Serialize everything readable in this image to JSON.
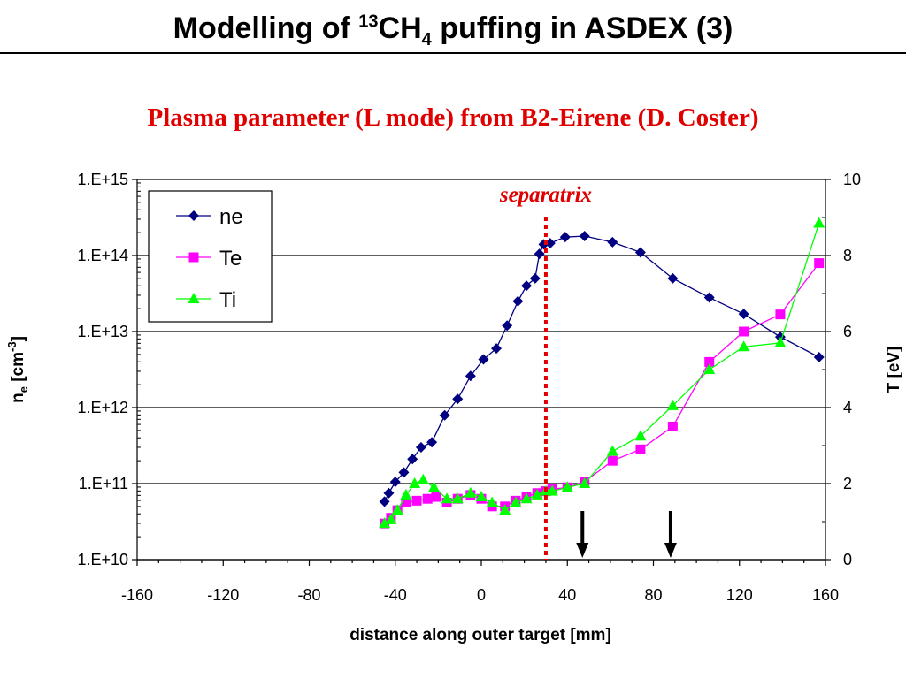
{
  "slide": {
    "title_main": "Modelling of ",
    "title_sup": "13",
    "title_mid": "CH",
    "title_sub": "4",
    "title_end": " puffing in ASDEX (3)"
  },
  "colors": {
    "ne": "#000080",
    "Te": "#ff00ff",
    "Ti": "#00ff00",
    "separatrix": "#e00000",
    "title_red": "#e00000",
    "arrows": "#000000"
  },
  "chart_data": {
    "type": "line",
    "title": "Plasma parameter (L mode) from B2-Eirene (D. Coster)",
    "xlabel": "distance along outer target [mm]",
    "ylabel_left_main": "n",
    "ylabel_left_sub": "e",
    "ylabel_left_unit": " [cm",
    "ylabel_left_sup": "-3",
    "ylabel_left_close": "]",
    "ylabel_right": "T [eV]",
    "xlim": [
      -160,
      160
    ],
    "x_ticks": [
      -160,
      -120,
      -80,
      -40,
      0,
      40,
      80,
      120,
      160
    ],
    "x_tick_labels": [
      "-160",
      "-120",
      "-80",
      "-40",
      "0",
      "40",
      "80",
      "120",
      "160"
    ],
    "y_left_scale": "log",
    "y_left_lim": [
      10000000000.0,
      1000000000000000.0
    ],
    "y_left_ticks": [
      10000000000.0,
      100000000000.0,
      1000000000000.0,
      10000000000000.0,
      100000000000000.0,
      1000000000000000.0
    ],
    "y_left_tick_labels": [
      "1.E+10",
      "1.E+11",
      "1.E+12",
      "1.E+13",
      "1.E+14",
      "1.E+15"
    ],
    "y_right_lim": [
      0,
      10
    ],
    "y_right_ticks": [
      0,
      2,
      4,
      6,
      8,
      10
    ],
    "y_right_tick_labels": [
      "0",
      "2",
      "4",
      "6",
      "8",
      "10"
    ],
    "grid": "horizontal major lines",
    "legend_position": "top-left",
    "series": [
      {
        "name": "ne",
        "axis": "left",
        "marker": "diamond",
        "x": [
          -45,
          -43,
          -40,
          -36,
          -32,
          -28,
          -23,
          -17,
          -11,
          -5,
          1,
          7,
          12,
          17,
          21,
          25,
          27,
          29,
          32,
          39,
          48,
          61,
          74,
          89,
          106,
          122,
          139,
          157
        ],
        "y": [
          58000000000.0,
          75000000000.0,
          105000000000.0,
          140000000000.0,
          210000000000.0,
          300000000000.0,
          350000000000.0,
          790000000000.0,
          1300000000000.0,
          2600000000000.0,
          4300000000000.0,
          6000000000000.0,
          12000000000000.0,
          25000000000000.0,
          40000000000000.0,
          50000000000000.0,
          105000000000000.0,
          140000000000000.0,
          145000000000000.0,
          175000000000000.0,
          180000000000000.0,
          150000000000000.0,
          110000000000000.0,
          50000000000000.0,
          28000000000000.0,
          17000000000000.0,
          8500000000000.0,
          4600000000000.0
        ]
      },
      {
        "name": "Te",
        "axis": "right",
        "marker": "square",
        "x": [
          -45,
          -42,
          -39,
          -35,
          -30,
          -25,
          -21,
          -16,
          -11,
          -5,
          0,
          5,
          11,
          16,
          21,
          26,
          30,
          33,
          40,
          48,
          61,
          74,
          89,
          106,
          122,
          139,
          157
        ],
        "y": [
          0.95,
          1.1,
          1.3,
          1.5,
          1.55,
          1.6,
          1.65,
          1.5,
          1.6,
          1.7,
          1.6,
          1.4,
          1.4,
          1.55,
          1.65,
          1.75,
          1.8,
          1.85,
          1.9,
          2.05,
          2.6,
          2.9,
          3.5,
          5.2,
          6.0,
          6.45,
          7.8
        ]
      },
      {
        "name": "Ti",
        "axis": "right",
        "marker": "triangle",
        "x": [
          -45,
          -42,
          -39,
          -35,
          -31,
          -27,
          -22,
          -16,
          -11,
          -5,
          0,
          5,
          11,
          16,
          21,
          26,
          30,
          33,
          40,
          48,
          61,
          74,
          89,
          106,
          122,
          139,
          157
        ],
        "y": [
          0.95,
          1.05,
          1.3,
          1.7,
          2.0,
          2.1,
          1.9,
          1.6,
          1.6,
          1.75,
          1.65,
          1.5,
          1.3,
          1.5,
          1.6,
          1.7,
          1.8,
          1.8,
          1.9,
          2.0,
          2.85,
          3.25,
          4.05,
          5.0,
          5.6,
          5.7,
          8.85
        ]
      }
    ],
    "annotations": [
      {
        "text": "separatrix",
        "x": 30
      },
      {
        "type": "arrow",
        "direction": "down",
        "x": 47
      },
      {
        "type": "arrow",
        "direction": "down",
        "x": 88
      }
    ]
  }
}
